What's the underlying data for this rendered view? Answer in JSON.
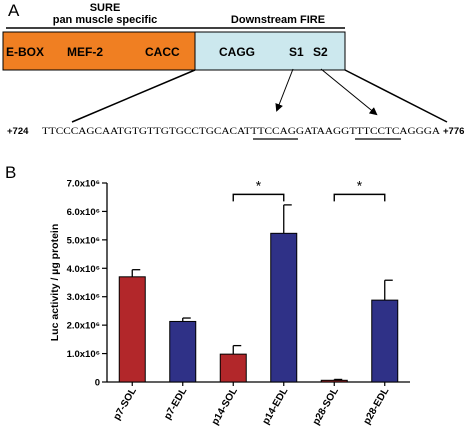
{
  "panel_a": {
    "label": "A",
    "sure_title": "SURE",
    "sure_subtitle": "pan muscle specific",
    "downstream_title": "Downstream FIRE",
    "orange_box": {
      "color": "#f07f22",
      "elements": [
        "E-BOX",
        "MEF-2",
        "CACC"
      ]
    },
    "blue_box": {
      "color": "#cce8ee",
      "elements": [
        "CAGG",
        "S1",
        "S2"
      ]
    },
    "sequence": {
      "start": "+724",
      "end": "+776",
      "seg1": "TTCCCAGCAATGTGTTGTGCCTGCACA",
      "underline1": "TTTCCA",
      "seg2": "GGATAAGG",
      "underline2": "TTTCCT",
      "seg3": "CAGGGA"
    }
  },
  "panel_b": {
    "label": "B",
    "colors": {
      "sol": "#b2272a",
      "edl": "#2f3187"
    }
  },
  "chart_data": {
    "type": "bar",
    "ylabel": "Luc activity / µg protein",
    "ylim": [
      0,
      7000000
    ],
    "yticks": [
      {
        "value": 0,
        "label": "0"
      },
      {
        "value": 1000000,
        "label": "1.0x10⁶"
      },
      {
        "value": 2000000,
        "label": "2.0x10⁶"
      },
      {
        "value": 3000000,
        "label": "3.0x10⁶"
      },
      {
        "value": 4000000,
        "label": "4.0x10⁶"
      },
      {
        "value": 5000000,
        "label": "5.0x10⁶"
      },
      {
        "value": 6000000,
        "label": "6.0x10⁶"
      },
      {
        "value": 7000000,
        "label": "7.0x10⁶"
      }
    ],
    "categories": [
      "p7-SOL",
      "p7-EDL",
      "p14-SOL",
      "p14-EDL",
      "p28-SOL",
      "p28-EDL"
    ],
    "values": [
      3700000,
      2130000,
      980000,
      5230000,
      60000,
      2880000
    ],
    "errors": [
      250000,
      120000,
      300000,
      1000000,
      30000,
      700000
    ],
    "bar_colors": [
      "#b2272a",
      "#2f3187",
      "#b2272a",
      "#2f3187",
      "#b2272a",
      "#2f3187"
    ],
    "significance": [
      {
        "from": 2,
        "to": 3,
        "label": "*",
        "y": 6600000
      },
      {
        "from": 4,
        "to": 5,
        "label": "*",
        "y": 6600000
      }
    ]
  }
}
